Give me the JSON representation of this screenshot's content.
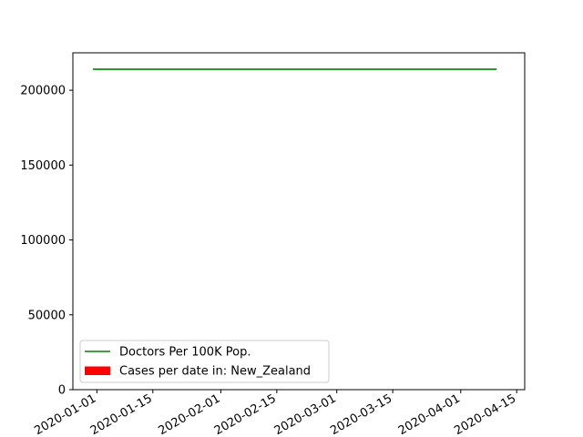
{
  "chart_data": {
    "type": "line",
    "title": "",
    "xlabel": "",
    "ylabel": "",
    "x_axis_type": "date",
    "xlim": [
      "2019-12-26",
      "2020-04-17"
    ],
    "ylim": [
      0,
      225000
    ],
    "x_ticks": [
      "2020-01-01",
      "2020-01-15",
      "2020-02-01",
      "2020-02-15",
      "2020-03-01",
      "2020-03-15",
      "2020-04-01",
      "2020-04-15"
    ],
    "y_ticks": [
      0,
      50000,
      100000,
      150000,
      200000
    ],
    "y_tick_labels": [
      "0",
      "50000",
      "100000",
      "150000",
      "200000"
    ],
    "grid": false,
    "legend_position": "lower-left",
    "series": [
      {
        "name": "Doctors Per 100K Pop.",
        "type": "line",
        "color": "#008000",
        "x": [
          "2019-12-31",
          "2020-04-10"
        ],
        "y": [
          214000,
          214000
        ]
      },
      {
        "name": "Cases per date in: New_Zealand",
        "type": "bar",
        "color": "#ff0000",
        "x": [],
        "y": []
      }
    ]
  }
}
